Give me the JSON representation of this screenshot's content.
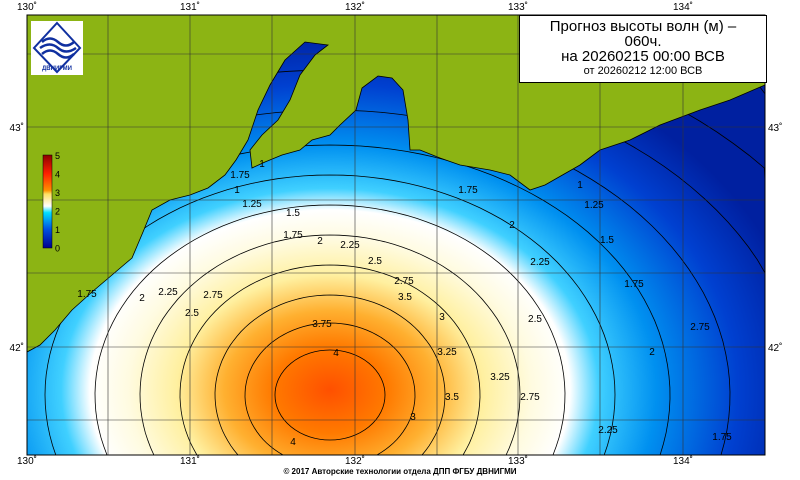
{
  "title": {
    "line1": "Прогноз высоты волн (м) –",
    "line2": "060ч.",
    "line3": "на 20260215 00:00 ВСВ",
    "line4": "от 20260212 12:00 ВСВ"
  },
  "logo": {
    "text": "ДВНИГМИ",
    "icon": "dvnigmi-logo"
  },
  "axes": {
    "lon_ticks": [
      "130˚",
      "131˚",
      "132˚",
      "133˚",
      "134˚"
    ],
    "lat_ticks": [
      "43˚",
      "42˚"
    ]
  },
  "colorbar": {
    "labels": [
      "5",
      "4",
      "3",
      "2",
      "1",
      "0"
    ],
    "colors": [
      "#8b0000",
      "#ff2000",
      "#ff9000",
      "#ffe060",
      "#ffffff",
      "#00e0ff",
      "#0050e0",
      "#000090"
    ]
  },
  "contour_labels": [
    "1.75",
    "1",
    "1.25",
    "1.5",
    "1.75",
    "2",
    "2.25",
    "2.5",
    "2.75",
    "3",
    "3.25",
    "3.5",
    "3.75",
    "4",
    "4",
    "1.75",
    "1",
    "1.25",
    "1.5",
    "1.75",
    "2",
    "2.25",
    "2.5",
    "2.75",
    "3",
    "3.25",
    "3.5",
    "2.75",
    "2.25",
    "2",
    "1.75",
    "1.75",
    "2",
    "2.25",
    "2.5",
    "2.75",
    "1"
  ],
  "colors": {
    "land": "#8cb414",
    "sea_low": "#0030d0",
    "sea_peak": "#ff5a00"
  },
  "footer": "© 2017 Авторские технологии отдела ДПП ФГБУ ДВНИГМИ"
}
